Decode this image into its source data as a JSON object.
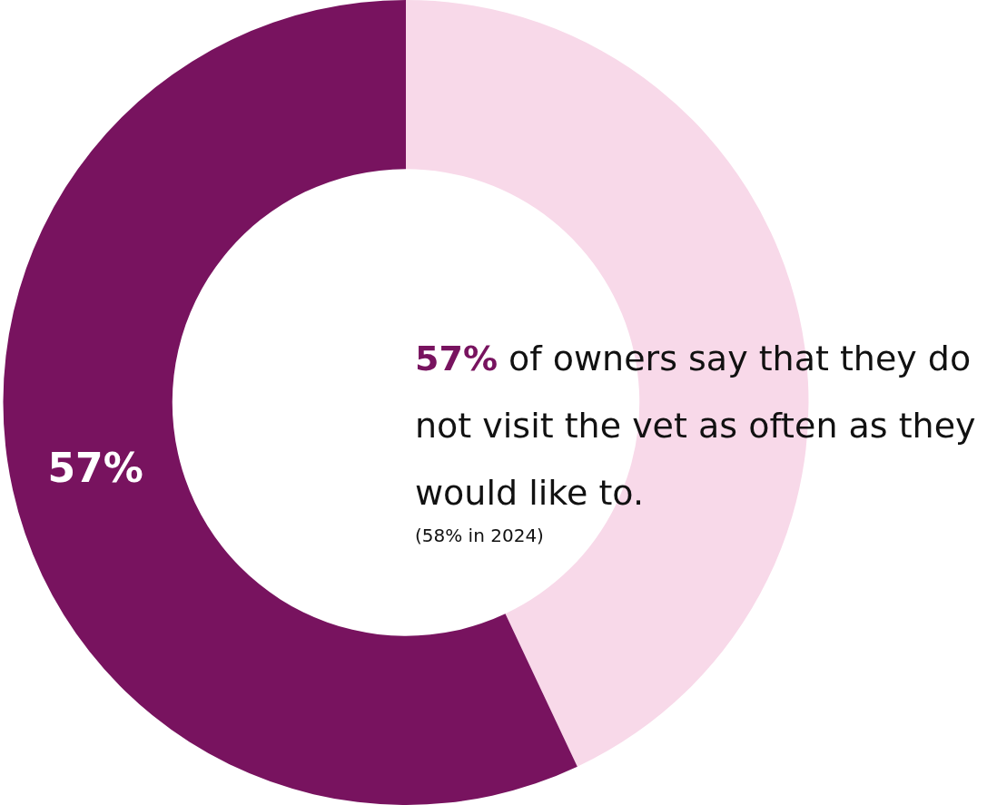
{
  "chart_data": {
    "type": "donut",
    "categories": [
      null,
      null
    ],
    "values": [
      43,
      57
    ],
    "colors": [
      "#f8d9e9",
      "#78135f"
    ],
    "value_labels": [
      null,
      "57%"
    ],
    "legend": false,
    "annotations": [
      "57% of owners say that they do not visit the vet as often as they would like to.",
      "(58% in 2024)"
    ]
  }
}
